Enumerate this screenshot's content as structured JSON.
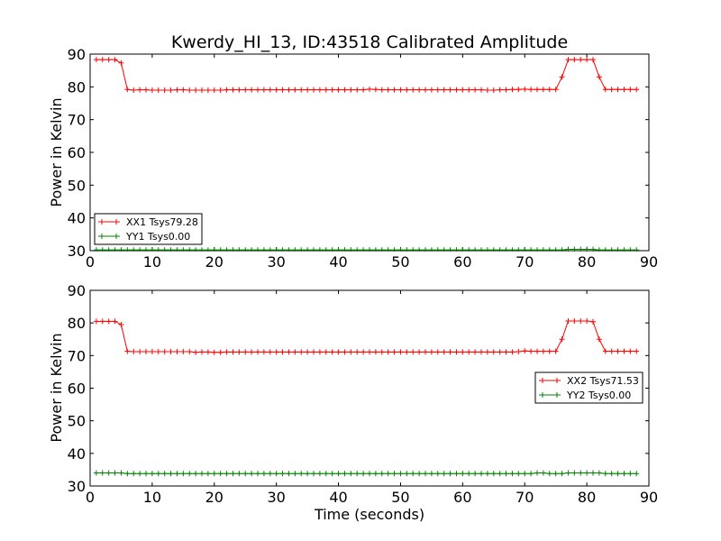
{
  "chart_data": [
    {
      "type": "line",
      "title": "Kwerdy_HI_13, ID:43518 Calibrated Amplitude",
      "xlabel": "",
      "ylabel": "Power in Kelvin",
      "xlim": [
        0,
        90
      ],
      "ylim": [
        30,
        90
      ],
      "xticks": [
        0,
        10,
        20,
        30,
        40,
        50,
        60,
        70,
        80,
        90
      ],
      "yticks": [
        30,
        40,
        50,
        60,
        70,
        80,
        90
      ],
      "legend_position": "lower-left",
      "grid": false,
      "x": [
        1,
        2,
        3,
        4,
        5,
        6,
        7,
        8,
        9,
        10,
        11,
        12,
        13,
        14,
        15,
        16,
        17,
        18,
        19,
        20,
        21,
        22,
        23,
        24,
        25,
        26,
        27,
        28,
        29,
        30,
        31,
        32,
        33,
        34,
        35,
        36,
        37,
        38,
        39,
        40,
        41,
        42,
        43,
        44,
        45,
        46,
        47,
        48,
        49,
        50,
        51,
        52,
        53,
        54,
        55,
        56,
        57,
        58,
        59,
        60,
        61,
        62,
        63,
        64,
        65,
        66,
        67,
        68,
        69,
        70,
        71,
        72,
        73,
        74,
        75,
        76,
        77,
        78,
        79,
        80,
        81,
        82,
        83,
        84,
        85,
        86,
        87,
        88
      ],
      "series": [
        {
          "name": "XX1 Tsys79.28",
          "color": "#ff0000",
          "values": [
            88.3,
            88.3,
            88.3,
            88.3,
            87.3,
            79.2,
            79.0,
            79.1,
            79.1,
            79.0,
            79.0,
            79.0,
            79.0,
            79.1,
            79.1,
            79.0,
            79.0,
            79.0,
            79.0,
            79.0,
            79.0,
            79.1,
            79.1,
            79.1,
            79.1,
            79.1,
            79.1,
            79.1,
            79.1,
            79.1,
            79.1,
            79.1,
            79.1,
            79.1,
            79.1,
            79.1,
            79.1,
            79.1,
            79.1,
            79.1,
            79.1,
            79.1,
            79.1,
            79.1,
            79.3,
            79.2,
            79.1,
            79.1,
            79.1,
            79.1,
            79.1,
            79.1,
            79.1,
            79.1,
            79.1,
            79.1,
            79.1,
            79.1,
            79.1,
            79.1,
            79.1,
            79.1,
            79.1,
            79.0,
            79.0,
            79.1,
            79.1,
            79.2,
            79.2,
            79.3,
            79.2,
            79.2,
            79.2,
            79.2,
            79.2,
            83.0,
            88.3,
            88.3,
            88.3,
            88.3,
            88.3,
            83.0,
            79.2,
            79.2,
            79.2,
            79.2,
            79.2,
            79.2
          ]
        },
        {
          "name": "YY1 Tsys0.00",
          "color": "#008000",
          "values": [
            30.2,
            30.2,
            30.2,
            30.2,
            30.2,
            30.2,
            30.2,
            30.2,
            30.2,
            30.2,
            30.2,
            30.2,
            30.2,
            30.2,
            30.2,
            30.2,
            30.2,
            30.2,
            30.2,
            30.2,
            30.2,
            30.2,
            30.2,
            30.2,
            30.2,
            30.2,
            30.2,
            30.2,
            30.2,
            30.2,
            30.2,
            30.2,
            30.2,
            30.2,
            30.2,
            30.2,
            30.2,
            30.2,
            30.2,
            30.2,
            30.2,
            30.2,
            30.2,
            30.2,
            30.2,
            30.2,
            30.2,
            30.2,
            30.2,
            30.2,
            30.2,
            30.2,
            30.2,
            30.2,
            30.2,
            30.2,
            30.2,
            30.2,
            30.2,
            30.2,
            30.2,
            30.2,
            30.2,
            30.2,
            30.2,
            30.2,
            30.2,
            30.2,
            30.2,
            30.2,
            30.2,
            30.2,
            30.2,
            30.2,
            30.2,
            30.2,
            30.4,
            30.4,
            30.4,
            30.4,
            30.4,
            30.2,
            30.2,
            30.2,
            30.2,
            30.2,
            30.2,
            30.2
          ]
        }
      ]
    },
    {
      "type": "line",
      "title": "",
      "xlabel": "Time (seconds)",
      "ylabel": "Power in Kelvin",
      "xlim": [
        0,
        90
      ],
      "ylim": [
        30,
        90
      ],
      "xticks": [
        0,
        10,
        20,
        30,
        40,
        50,
        60,
        70,
        80,
        90
      ],
      "yticks": [
        30,
        40,
        50,
        60,
        70,
        80,
        90
      ],
      "legend_position": "center-right",
      "grid": false,
      "x": [
        1,
        2,
        3,
        4,
        5,
        6,
        7,
        8,
        9,
        10,
        11,
        12,
        13,
        14,
        15,
        16,
        17,
        18,
        19,
        20,
        21,
        22,
        23,
        24,
        25,
        26,
        27,
        28,
        29,
        30,
        31,
        32,
        33,
        34,
        35,
        36,
        37,
        38,
        39,
        40,
        41,
        42,
        43,
        44,
        45,
        46,
        47,
        48,
        49,
        50,
        51,
        52,
        53,
        54,
        55,
        56,
        57,
        58,
        59,
        60,
        61,
        62,
        63,
        64,
        65,
        66,
        67,
        68,
        69,
        70,
        71,
        72,
        73,
        74,
        75,
        76,
        77,
        78,
        79,
        80,
        81,
        82,
        83,
        84,
        85,
        86,
        87,
        88
      ],
      "series": [
        {
          "name": "XX2 Tsys71.53",
          "color": "#ff0000",
          "values": [
            80.5,
            80.5,
            80.5,
            80.5,
            79.5,
            71.3,
            71.2,
            71.2,
            71.2,
            71.2,
            71.2,
            71.2,
            71.2,
            71.2,
            71.2,
            71.2,
            71.0,
            71.1,
            71.1,
            71.0,
            71.0,
            71.1,
            71.1,
            71.1,
            71.1,
            71.1,
            71.1,
            71.1,
            71.1,
            71.1,
            71.1,
            71.1,
            71.1,
            71.1,
            71.1,
            71.1,
            71.1,
            71.1,
            71.1,
            71.1,
            71.1,
            71.1,
            71.1,
            71.1,
            71.1,
            71.1,
            71.1,
            71.1,
            71.1,
            71.1,
            71.1,
            71.1,
            71.1,
            71.1,
            71.1,
            71.1,
            71.1,
            71.1,
            71.1,
            71.1,
            71.1,
            71.1,
            71.1,
            71.1,
            71.1,
            71.1,
            71.1,
            71.1,
            71.2,
            71.4,
            71.3,
            71.3,
            71.3,
            71.3,
            71.3,
            75.0,
            80.6,
            80.6,
            80.6,
            80.6,
            80.4,
            75.0,
            71.3,
            71.3,
            71.3,
            71.3,
            71.3,
            71.3
          ]
        },
        {
          "name": "YY2 Tsys0.00",
          "color": "#008000",
          "values": [
            34.0,
            34.0,
            34.0,
            34.0,
            34.0,
            33.8,
            33.8,
            33.8,
            33.8,
            33.8,
            33.8,
            33.8,
            33.8,
            33.8,
            33.8,
            33.8,
            33.8,
            33.8,
            33.8,
            33.8,
            33.8,
            33.8,
            33.8,
            33.8,
            33.8,
            33.8,
            33.8,
            33.8,
            33.8,
            33.8,
            33.8,
            33.8,
            33.8,
            33.8,
            33.8,
            33.8,
            33.8,
            33.8,
            33.8,
            33.8,
            33.8,
            33.8,
            33.8,
            33.8,
            33.8,
            33.8,
            33.8,
            33.8,
            33.8,
            33.8,
            33.8,
            33.8,
            33.8,
            33.8,
            33.8,
            33.8,
            33.8,
            33.8,
            33.8,
            33.8,
            33.8,
            33.8,
            33.8,
            33.8,
            33.8,
            33.8,
            33.8,
            33.8,
            33.8,
            33.8,
            33.8,
            34.0,
            34.0,
            33.8,
            33.8,
            33.8,
            34.0,
            34.0,
            34.0,
            34.0,
            34.0,
            34.0,
            33.8,
            33.8,
            33.8,
            33.8,
            33.8,
            33.8
          ]
        }
      ]
    }
  ]
}
